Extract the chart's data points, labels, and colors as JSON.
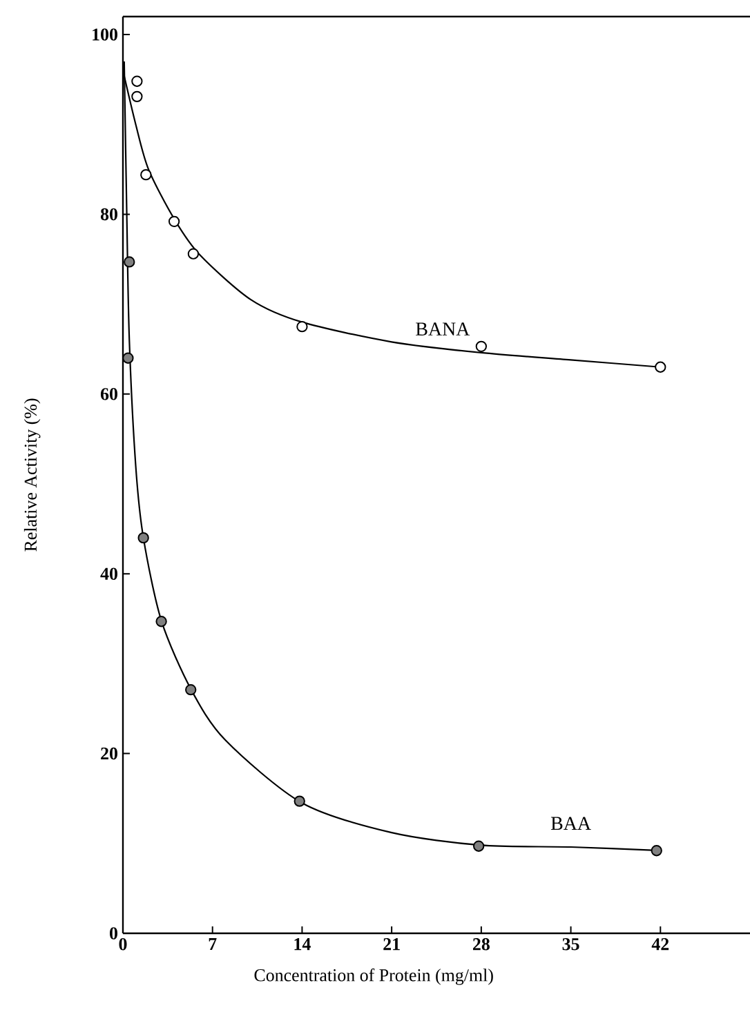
{
  "chart_data": {
    "type": "scatter",
    "xlabel": "Concentration of Protein (mg/ml)",
    "ylabel": "Relative Activity (%)",
    "xlim": [
      0,
      49
    ],
    "ylim": [
      0,
      102
    ],
    "xticks": [
      0,
      7,
      14,
      21,
      28,
      35,
      42
    ],
    "yticks": [
      0,
      20,
      40,
      60,
      80,
      100
    ],
    "grid": false,
    "series": [
      {
        "marker": "circle",
        "color": "#ffffff",
        "x": [
          1.1,
          1.1,
          1.8,
          4.0,
          5.5,
          14.0,
          28.0,
          42.0
        ],
        "values": [
          94.8,
          93.1,
          84.4,
          79.2,
          75.6,
          67.5,
          65.3,
          63.0
        ]
      },
      {
        "marker": "circle",
        "color": "#808080",
        "x": [
          0.4,
          0.5,
          1.6,
          3.0,
          5.3,
          13.8,
          27.8,
          41.7
        ],
        "values": [
          64.0,
          74.7,
          44.0,
          34.7,
          27.1,
          14.7,
          9.7,
          9.2
        ]
      },
      {
        "type": "line",
        "name": "BANA",
        "marker": "none",
        "color": "#000000",
        "x": [
          0,
          1,
          2,
          4,
          6,
          10,
          14,
          21,
          28,
          35,
          42
        ],
        "values": [
          96,
          90,
          85,
          79.5,
          75.5,
          70.5,
          68,
          65.8,
          64.6,
          63.8,
          63
        ]
      },
      {
        "type": "line",
        "name": "BAA",
        "marker": "none",
        "color": "#000000",
        "x": [
          0.1,
          0.3,
          0.5,
          1,
          1.6,
          3,
          5.3,
          8,
          14,
          21,
          28,
          35,
          42
        ],
        "values": [
          97,
          80,
          66,
          52,
          44,
          34.8,
          27.2,
          21.5,
          14.5,
          11.2,
          9.8,
          9.6,
          9.2
        ]
      }
    ]
  }
}
